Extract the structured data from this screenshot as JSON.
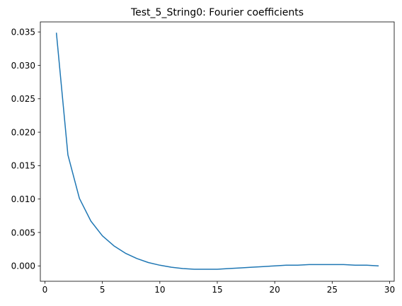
{
  "chart_data": {
    "type": "line",
    "title": "Test_5_String0: Fourier coefficients",
    "xlabel": "",
    "ylabel": "",
    "xlim": [
      -0.4,
      30.4
    ],
    "ylim": [
      -0.0023,
      0.0365
    ],
    "grid": false,
    "x_ticks": [
      0,
      5,
      10,
      15,
      20,
      25,
      30
    ],
    "x_tick_labels": [
      "0",
      "5",
      "10",
      "15",
      "20",
      "25",
      "30"
    ],
    "y_ticks": [
      0.0,
      0.005,
      0.01,
      0.015,
      0.02,
      0.025,
      0.03,
      0.035
    ],
    "y_tick_labels": [
      "0.000",
      "0.005",
      "0.010",
      "0.015",
      "0.020",
      "0.025",
      "0.030",
      "0.035"
    ],
    "series": [
      {
        "color": "#1f77b4",
        "x": [
          1,
          2,
          3,
          4,
          5,
          6,
          7,
          8,
          9,
          10,
          11,
          12,
          13,
          14,
          15,
          16,
          17,
          18,
          19,
          20,
          21,
          22,
          23,
          24,
          25,
          26,
          27,
          28,
          29
        ],
        "y": [
          0.0348,
          0.0166,
          0.0101,
          0.0067,
          0.0045,
          0.003,
          0.0019,
          0.0011,
          0.0005,
          0.0001,
          -0.0002,
          -0.0004,
          -0.0005,
          -0.0005,
          -0.0005,
          -0.0004,
          -0.0003,
          -0.0002,
          -0.0001,
          0.0,
          0.0001,
          0.0001,
          0.0002,
          0.0002,
          0.0002,
          0.0002,
          0.0001,
          0.0001,
          0.0
        ]
      }
    ]
  }
}
